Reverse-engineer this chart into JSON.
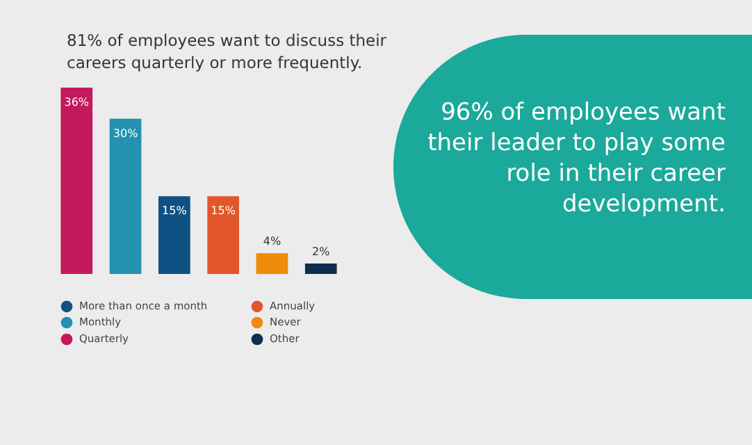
{
  "chart_data": {
    "type": "bar",
    "title": "81% of employees want to discuss their careers quarterly or more frequently.",
    "categories": [
      null,
      null,
      null,
      null,
      null,
      null
    ],
    "stacked": true,
    "series": [
      {
        "name": "More than once a month",
        "color": "#0f5182",
        "values": [
          null,
          null,
          15,
          null,
          null,
          null
        ],
        "value_labels": [
          null,
          null,
          "15%",
          null,
          null,
          null
        ]
      },
      {
        "name": "Monthly",
        "color": "#2292b0",
        "values": [
          null,
          30,
          null,
          null,
          null,
          null
        ],
        "value_labels": [
          null,
          "30%",
          null,
          null,
          null,
          null
        ]
      },
      {
        "name": "Quarterly",
        "color": "#c4195c",
        "values": [
          36,
          null,
          null,
          null,
          null,
          null
        ],
        "value_labels": [
          "36%",
          null,
          null,
          null,
          null,
          null
        ]
      },
      {
        "name": "Annually",
        "color": "#e2562b",
        "values": [
          null,
          null,
          null,
          15,
          null,
          null
        ],
        "value_labels": [
          null,
          null,
          null,
          "15%",
          null,
          null
        ]
      },
      {
        "name": "Never",
        "color": "#ef8a0c",
        "values": [
          null,
          null,
          null,
          null,
          4,
          null
        ],
        "value_labels": [
          null,
          null,
          null,
          null,
          "4%",
          null
        ]
      },
      {
        "name": "Other",
        "color": "#0f2d4f",
        "values": [
          null,
          null,
          null,
          null,
          null,
          2
        ],
        "value_labels": [
          null,
          null,
          null,
          null,
          null,
          "2%"
        ]
      }
    ],
    "legend": "bottom",
    "annotations": [
      "96% of employees want their leader to play some role in their career development."
    ]
  }
}
